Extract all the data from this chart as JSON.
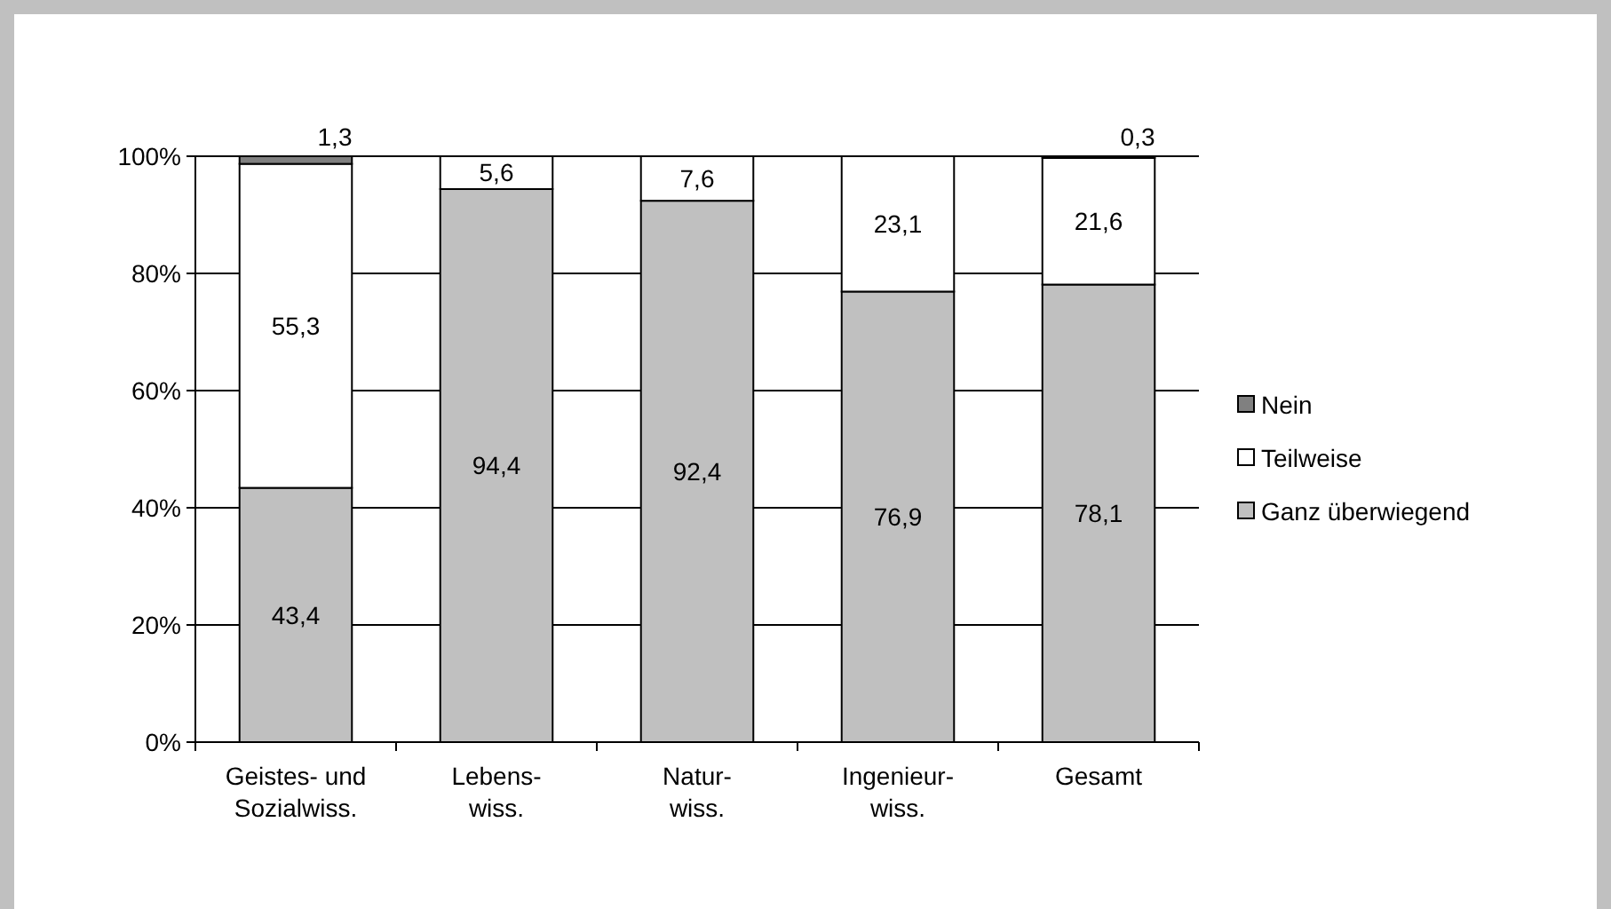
{
  "chart_data": {
    "type": "bar",
    "stacked": true,
    "categories": [
      "Geistes- und\nSozialwiss.",
      "Lebens-\nwiss.",
      "Natur-\nwiss.",
      "Ingenieur-\nwiss.",
      "Gesamt"
    ],
    "series": [
      {
        "name": "Ganz überwiegend",
        "color": "#c0c0c0",
        "values": [
          43.4,
          94.4,
          92.4,
          76.9,
          78.1
        ],
        "value_labels": [
          "43,4",
          "94,4",
          "92,4",
          "76,9",
          "78,1"
        ]
      },
      {
        "name": "Teilweise",
        "color": "#ffffff",
        "values": [
          55.3,
          5.6,
          7.6,
          23.1,
          21.6
        ],
        "value_labels": [
          "55,3",
          "5,6",
          "7,6",
          "23,1",
          "21,6"
        ]
      },
      {
        "name": "Nein",
        "color": "#808080",
        "values": [
          1.3,
          null,
          null,
          null,
          0.3
        ],
        "value_labels": [
          "1,3",
          null,
          null,
          null,
          "0,3"
        ]
      }
    ],
    "ylim": [
      0,
      100
    ],
    "yticks": [
      {
        "value": 0,
        "label": "0%"
      },
      {
        "value": 20,
        "label": "20%"
      },
      {
        "value": 40,
        "label": "40%"
      },
      {
        "value": 60,
        "label": "60%"
      },
      {
        "value": 80,
        "label": "80%"
      },
      {
        "value": 100,
        "label": "100%"
      }
    ],
    "grid": "y",
    "legend": "right"
  }
}
